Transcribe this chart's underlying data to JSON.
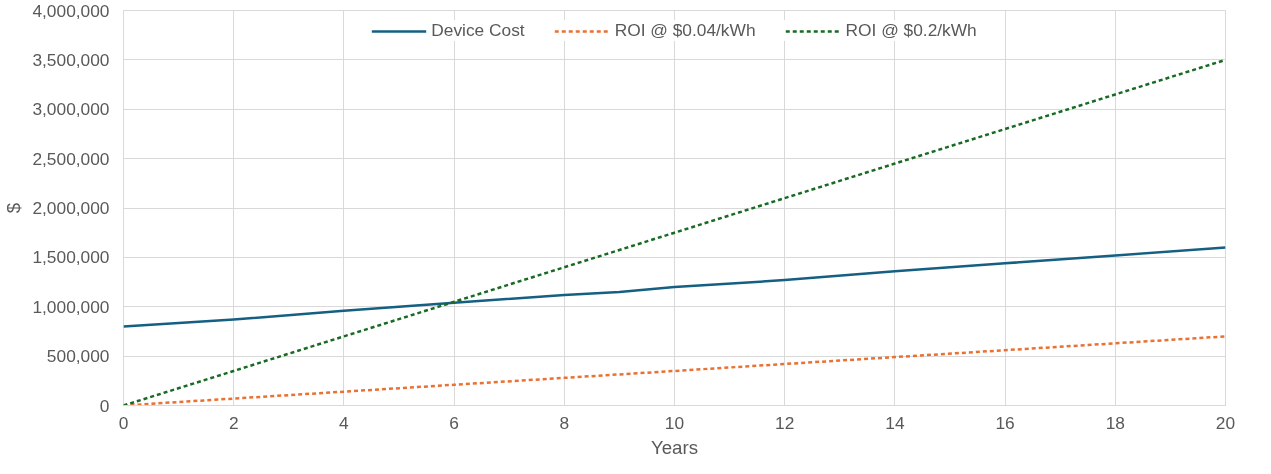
{
  "chart_data": {
    "type": "line",
    "xlabel": "Years",
    "ylabel": "$",
    "x": [
      0,
      2,
      4,
      6,
      8,
      9,
      10,
      12,
      14,
      16,
      18,
      20
    ],
    "series": [
      {
        "name": "Device Cost",
        "color": "#156082",
        "line_style": "solid",
        "values": [
          800000,
          870000,
          960000,
          1040000,
          1120000,
          1150000,
          1200000,
          1270000,
          1360000,
          1440000,
          1520000,
          1600000
        ]
      },
      {
        "name": "ROI @ $0.04/kWh",
        "color": "#e97132",
        "line_style": "dashed",
        "values": [
          0,
          70000,
          140000,
          210000,
          280000,
          315000,
          350000,
          420000,
          490000,
          560000,
          630000,
          700000
        ]
      },
      {
        "name": "ROI @ $0.2/kWh",
        "color": "#196b24",
        "line_style": "dashed",
        "values": [
          0,
          350000,
          700000,
          1050000,
          1400000,
          1575000,
          1750000,
          2100000,
          2450000,
          2800000,
          3150000,
          3500000
        ]
      }
    ],
    "xlim": [
      0,
      20
    ],
    "xticks": [
      0,
      2,
      4,
      6,
      8,
      10,
      12,
      14,
      16,
      18,
      20
    ],
    "ylim": [
      0,
      4000000
    ],
    "yticks": [
      {
        "value": 0,
        "label": "0"
      },
      {
        "value": 500000,
        "label": "500,000"
      },
      {
        "value": 1000000,
        "label": "1,000,000"
      },
      {
        "value": 1500000,
        "label": "1,500,000"
      },
      {
        "value": 2000000,
        "label": "2,000,000"
      },
      {
        "value": 2500000,
        "label": "2,500,000"
      },
      {
        "value": 3000000,
        "label": "3,000,000"
      },
      {
        "value": 3500000,
        "label": "3,500,000"
      },
      {
        "value": 4000000,
        "label": "4,000,000"
      }
    ],
    "grid": true,
    "legend": "top",
    "marker": "none"
  }
}
